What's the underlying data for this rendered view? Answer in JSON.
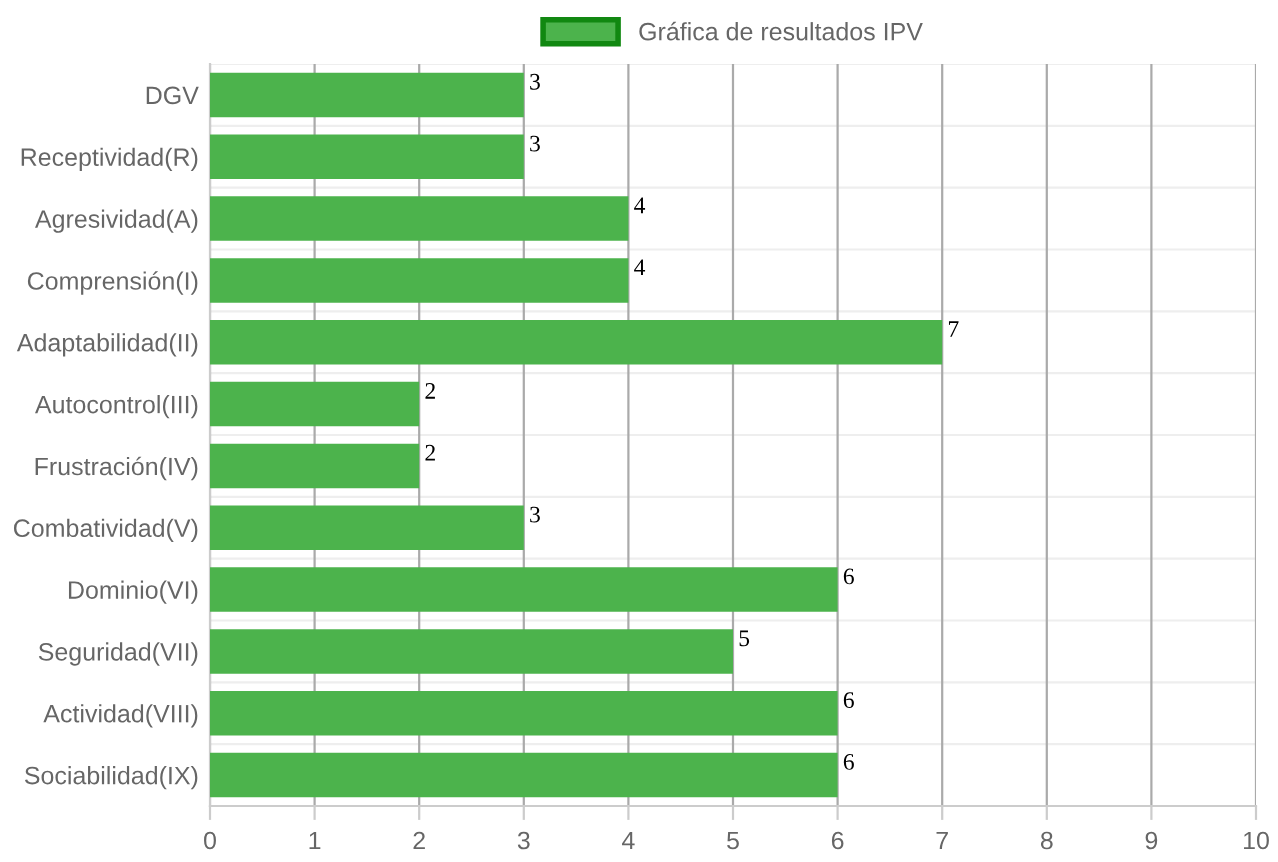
{
  "chart_data": {
    "type": "bar",
    "orientation": "horizontal",
    "categories": [
      "DGV",
      "Receptividad(R)",
      "Agresividad(A)",
      "Comprensión(I)",
      "Adaptabilidad(II)",
      "Autocontrol(III)",
      "Frustración(IV)",
      "Combatividad(V)",
      "Dominio(VI)",
      "Seguridad(VII)",
      "Actividad(VIII)",
      "Sociabilidad(IX)"
    ],
    "series": [
      {
        "name": "Gráfica de resultados IPV",
        "color": "#4cb34c",
        "values": [
          3,
          3,
          4,
          4,
          7,
          2,
          2,
          3,
          6,
          5,
          6,
          6
        ]
      }
    ],
    "xlim": [
      0,
      10
    ],
    "xticks": [
      0,
      1,
      2,
      3,
      4,
      5,
      6,
      7,
      8,
      9,
      10
    ],
    "grid": true,
    "legend": "top",
    "data_labels": true
  }
}
